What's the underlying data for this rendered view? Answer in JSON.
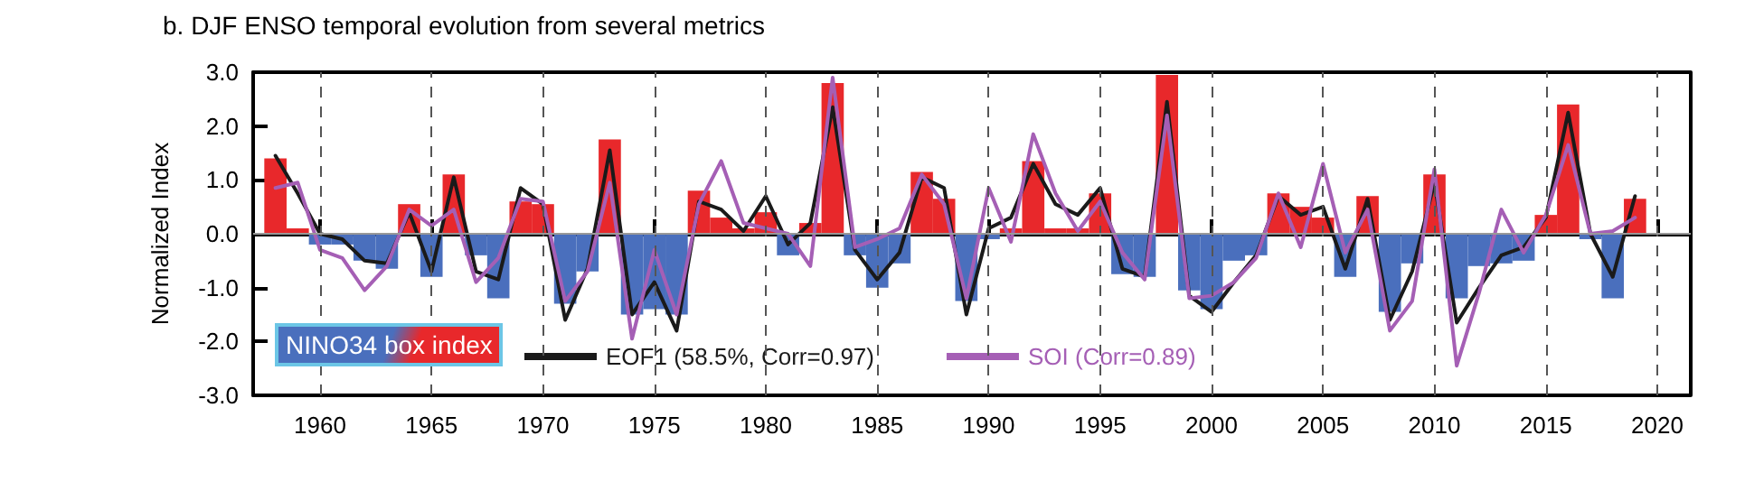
{
  "chart_data": {
    "type": "bar",
    "title": "b. DJF ENSO temporal evolution from several metrics",
    "ylabel": "Normalized Index",
    "x": [
      1958,
      1959,
      1960,
      1961,
      1962,
      1963,
      1964,
      1965,
      1966,
      1967,
      1968,
      1969,
      1970,
      1971,
      1972,
      1973,
      1974,
      1975,
      1976,
      1977,
      1978,
      1979,
      1980,
      1981,
      1982,
      1983,
      1984,
      1985,
      1986,
      1987,
      1988,
      1989,
      1990,
      1991,
      1992,
      1993,
      1994,
      1995,
      1996,
      1997,
      1998,
      1999,
      2000,
      2001,
      2002,
      2003,
      2004,
      2005,
      2006,
      2007,
      2008,
      2009,
      2010,
      2011,
      2012,
      2013,
      2014,
      2015,
      2016,
      2017,
      2018,
      2019
    ],
    "series": [
      {
        "name": "NINO34 box index",
        "values": [
          1.4,
          0.1,
          -0.2,
          -0.2,
          -0.5,
          -0.65,
          0.55,
          -0.8,
          1.1,
          -0.4,
          -1.2,
          0.6,
          0.55,
          -1.3,
          -0.7,
          1.75,
          -1.5,
          -1.4,
          -1.5,
          0.8,
          0.3,
          0.1,
          0.4,
          -0.4,
          0.2,
          2.8,
          -0.4,
          -1.0,
          -0.55,
          1.15,
          0.65,
          -1.25,
          -0.1,
          0.1,
          1.35,
          0.1,
          0.1,
          0.75,
          -0.75,
          -0.8,
          2.95,
          -1.05,
          -1.4,
          -0.5,
          -0.4,
          0.75,
          0.5,
          0.3,
          -0.8,
          0.7,
          -1.45,
          -0.55,
          1.1,
          -1.2,
          -0.6,
          -0.55,
          -0.5,
          0.35,
          2.4,
          -0.1,
          -1.2,
          0.65
        ],
        "colors": [
          "#e8282b",
          "#e8282b",
          "#4a6fbd",
          "#4a6fbd",
          "#4a6fbd",
          "#4a6fbd",
          "#e8282b",
          "#4a6fbd",
          "#e8282b",
          "#4a6fbd",
          "#4a6fbd",
          "#e8282b",
          "#e8282b",
          "#4a6fbd",
          "#4a6fbd",
          "#e8282b",
          "#4a6fbd",
          "#4a6fbd",
          "#4a6fbd",
          "#e8282b",
          "#e8282b",
          "#e8282b",
          "#e8282b",
          "#4a6fbd",
          "#e8282b",
          "#e8282b",
          "#4a6fbd",
          "#4a6fbd",
          "#4a6fbd",
          "#e8282b",
          "#e8282b",
          "#4a6fbd",
          "#4a6fbd",
          "#e8282b",
          "#e8282b",
          "#e8282b",
          "#e8282b",
          "#e8282b",
          "#4a6fbd",
          "#4a6fbd",
          "#e8282b",
          "#4a6fbd",
          "#4a6fbd",
          "#4a6fbd",
          "#4a6fbd",
          "#e8282b",
          "#e8282b",
          "#e8282b",
          "#4a6fbd",
          "#e8282b",
          "#4a6fbd",
          "#4a6fbd",
          "#e8282b",
          "#4a6fbd",
          "#4a6fbd",
          "#4a6fbd",
          "#4a6fbd",
          "#e8282b",
          "#e8282b",
          "#4a6fbd",
          "#4a6fbd",
          "#e8282b"
        ]
      },
      {
        "name": "EOF1 (58.5%, Corr=0.97)",
        "type": "line",
        "color": "#1a1a1a",
        "values": [
          1.45,
          0.75,
          0.0,
          -0.1,
          -0.5,
          -0.55,
          0.4,
          -0.7,
          1.05,
          -0.7,
          -0.85,
          0.85,
          0.55,
          -1.6,
          -0.65,
          1.55,
          -1.5,
          -0.9,
          -1.8,
          0.6,
          0.45,
          0.05,
          0.7,
          -0.2,
          0.2,
          2.35,
          -0.3,
          -0.85,
          -0.35,
          1.05,
          0.85,
          -1.5,
          0.1,
          0.3,
          1.3,
          0.55,
          0.35,
          0.85,
          -0.65,
          -0.8,
          2.45,
          -1.15,
          -1.45,
          -0.9,
          -0.4,
          0.7,
          0.35,
          0.5,
          -0.65,
          0.65,
          -1.6,
          -0.7,
          0.95,
          -1.65,
          -1.0,
          -0.4,
          -0.25,
          0.3,
          2.25,
          0.0,
          -0.8,
          0.7
        ]
      },
      {
        "name": "SOI (Corr=0.89)",
        "type": "line",
        "color": "#a55fb5",
        "values": [
          0.85,
          0.95,
          -0.3,
          -0.45,
          -1.05,
          -0.6,
          0.45,
          0.15,
          0.45,
          -0.9,
          -0.45,
          0.65,
          0.6,
          -1.25,
          -0.7,
          0.95,
          -1.95,
          -0.3,
          -1.5,
          0.55,
          1.35,
          0.2,
          0.1,
          0.0,
          -0.6,
          2.9,
          -0.25,
          -0.1,
          0.1,
          1.1,
          0.55,
          -1.2,
          0.85,
          -0.15,
          1.85,
          0.75,
          0.05,
          0.6,
          -0.35,
          -0.85,
          2.2,
          -1.2,
          -1.15,
          -0.9,
          -0.45,
          0.75,
          -0.25,
          1.3,
          -0.35,
          0.45,
          -1.8,
          -1.25,
          1.2,
          -2.45,
          -1.1,
          0.45,
          -0.35,
          0.35,
          1.65,
          0.0,
          0.05,
          0.3
        ]
      }
    ],
    "xlim": [
      1957,
      2021.5
    ],
    "xticks": [
      1960,
      1965,
      1970,
      1975,
      1980,
      1985,
      1990,
      1995,
      2000,
      2005,
      2010,
      2015,
      2020
    ],
    "ylim": [
      -3,
      3
    ],
    "yticks": [
      {
        "value": -3,
        "label": "-3.0"
      },
      {
        "value": -2,
        "label": "-2.0"
      },
      {
        "value": -1,
        "label": "-1.0"
      },
      {
        "value": 0,
        "label": "0.0"
      },
      {
        "value": 1,
        "label": "1.0"
      },
      {
        "value": 2,
        "label": "2.0"
      },
      {
        "value": 3,
        "label": "3.0"
      }
    ],
    "grid": "x",
    "legend": "bottom left",
    "marker": "none",
    "line_style": "solid",
    "ref_lines": [
      {
        "axis": "y",
        "value": 0,
        "color": "#999999"
      }
    ]
  }
}
